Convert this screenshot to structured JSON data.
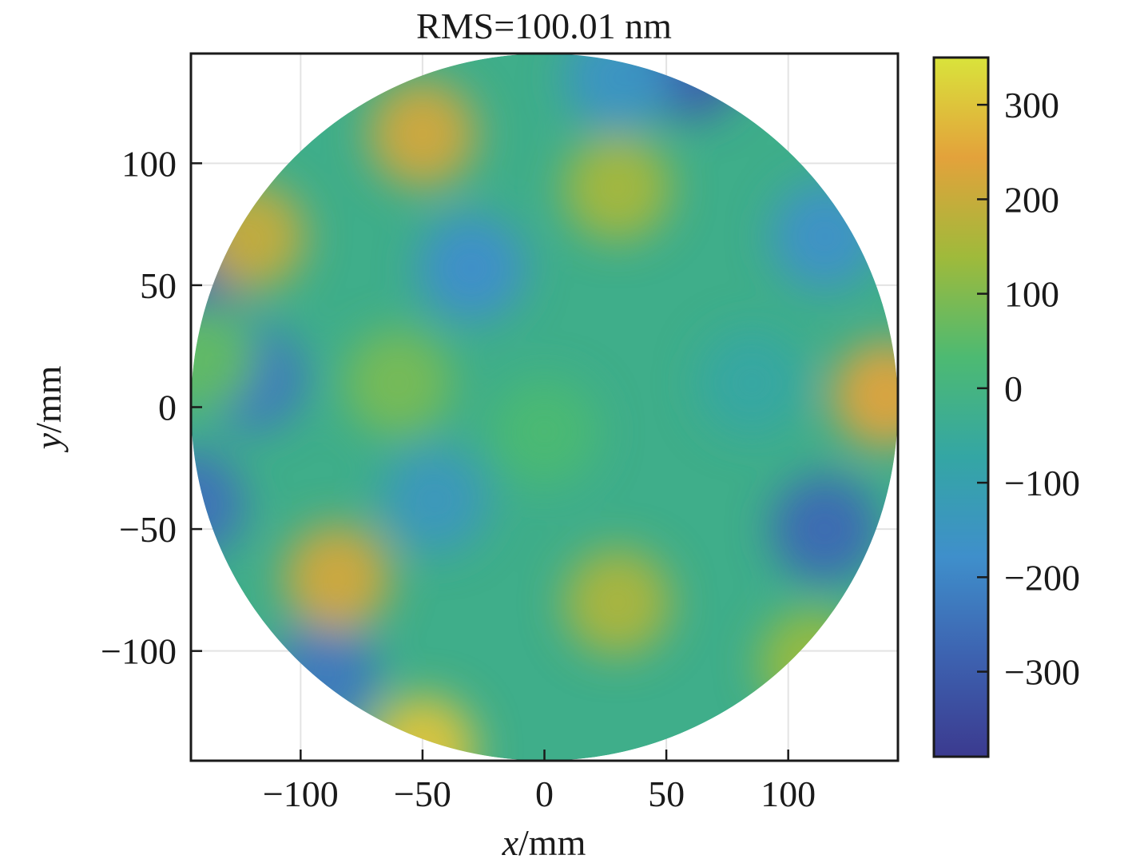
{
  "chart_data": {
    "type": "heatmap",
    "title": "RMS=100.01 nm",
    "xlabel_italic": "x",
    "xlabel_unit": "/mm",
    "ylabel_italic": "y",
    "ylabel_unit": "/mm",
    "xlim": [
      -145,
      145
    ],
    "ylim": [
      -145,
      145
    ],
    "xticks": [
      -100,
      -50,
      0,
      50,
      100
    ],
    "yticks": [
      -100,
      -50,
      0,
      50,
      100
    ],
    "xtick_labels": [
      "−100",
      "−50",
      "0",
      "50",
      "100"
    ],
    "ytick_labels": [
      "−100",
      "−50",
      "0",
      "50",
      "100"
    ],
    "grid": true,
    "aperture": "circular, radius ≈ 145 mm",
    "colorbar": {
      "range": [
        -390,
        350
      ],
      "ticks": [
        300,
        200,
        100,
        0,
        -100,
        -200,
        -300
      ],
      "tick_labels": [
        "300",
        "200",
        "100",
        "0",
        "−100",
        "−200",
        "−300"
      ],
      "colormap": [
        "#3b3a8f",
        "#3d62b0",
        "#3f8fcb",
        "#34a6a4",
        "#4dba72",
        "#9fba3b",
        "#e3a23b",
        "#d9e33b"
      ]
    },
    "features": [
      {
        "x": -30,
        "y": 57,
        "value": -180
      },
      {
        "x": -120,
        "y": 12,
        "value": -230
      },
      {
        "x": -45,
        "y": -38,
        "value": -140
      },
      {
        "x": 115,
        "y": 70,
        "value": -170
      },
      {
        "x": 115,
        "y": -50,
        "value": -270
      },
      {
        "x": 60,
        "y": 140,
        "value": -290
      },
      {
        "x": -140,
        "y": 60,
        "value": -280
      },
      {
        "x": -145,
        "y": -40,
        "value": -250
      },
      {
        "x": -90,
        "y": -110,
        "value": -230
      },
      {
        "x": 30,
        "y": 135,
        "value": -160
      },
      {
        "x": 85,
        "y": 10,
        "value": -70
      },
      {
        "x": -50,
        "y": 112,
        "value": 220
      },
      {
        "x": 30,
        "y": 90,
        "value": 150
      },
      {
        "x": -120,
        "y": 70,
        "value": 200
      },
      {
        "x": -85,
        "y": -70,
        "value": 220
      },
      {
        "x": 30,
        "y": -80,
        "value": 160
      },
      {
        "x": 140,
        "y": 5,
        "value": 240
      },
      {
        "x": -50,
        "y": -140,
        "value": 300
      },
      {
        "x": 110,
        "y": -105,
        "value": 130
      },
      {
        "x": -60,
        "y": 10,
        "value": 90
      },
      {
        "x": -140,
        "y": 20,
        "value": 60
      },
      {
        "x": 0,
        "y": -10,
        "value": 30
      }
    ]
  }
}
